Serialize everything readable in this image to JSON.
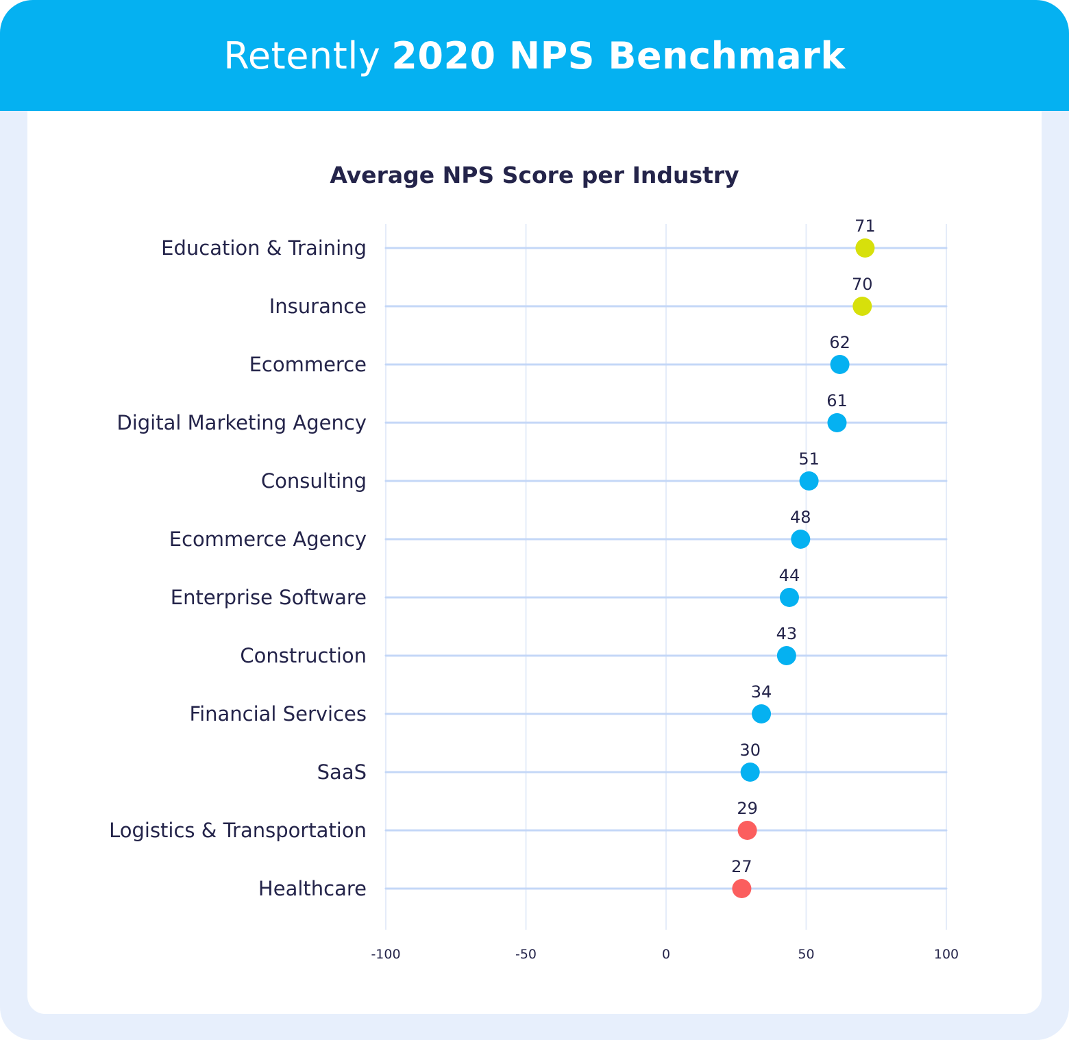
{
  "header": {
    "brand": "Retently",
    "title": "2020 NPS Benchmark",
    "background_color": "#05b1f1"
  },
  "chart_data": {
    "type": "scatter",
    "title": "Average NPS Score per Industry",
    "xlabel": "",
    "ylabel": "",
    "xlim": [
      -100,
      100
    ],
    "xticks": [
      -100,
      -50,
      0,
      50,
      100
    ],
    "grid": true,
    "categories": [
      "Education & Training",
      "Insurance",
      "Ecommerce",
      "Digital Marketing Agency",
      "Consulting",
      "Ecommerce Agency",
      "Enterprise Software",
      "Construction",
      "Financial Services",
      "SaaS",
      "Logistics & Transportation",
      "Healthcare"
    ],
    "values": [
      71,
      70,
      62,
      61,
      51,
      48,
      44,
      43,
      34,
      30,
      29,
      27
    ],
    "point_colors": [
      "#d7e00b",
      "#d7e00b",
      "#05b1f1",
      "#05b1f1",
      "#05b1f1",
      "#05b1f1",
      "#05b1f1",
      "#05b1f1",
      "#05b1f1",
      "#05b1f1",
      "#fb5e5e",
      "#fb5e5e"
    ],
    "label_color": "#24244a",
    "line_color": "#c4d7f7",
    "grid_color": "#e5ecf9"
  }
}
